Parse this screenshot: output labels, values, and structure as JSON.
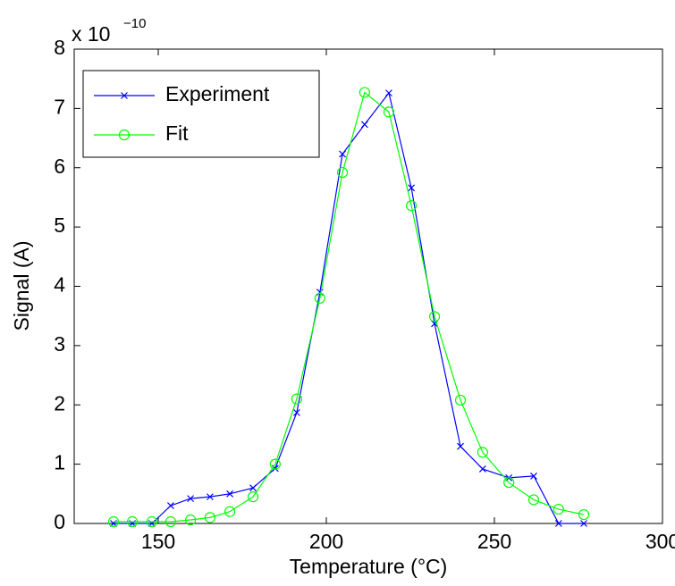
{
  "chart_data": {
    "type": "line",
    "xlabel": "Temperature (°C)",
    "ylabel": "Signal (A)",
    "y_multiplier_label": "x 10",
    "y_multiplier_exponent": "−10",
    "x": [
      136.7,
      142.3,
      148.1,
      153.7,
      159.6,
      165.4,
      171.3,
      178.2,
      184.8,
      191.2,
      198.1,
      204.8,
      211.4,
      218.6,
      225.3,
      232.2,
      239.9,
      246.5,
      254.3,
      261.7,
      269.1,
      276.6
    ],
    "series": [
      {
        "name": "Experiment",
        "color": "#0000ff",
        "marker": "x",
        "values": [
          0,
          0,
          0,
          0.3,
          0.42,
          0.45,
          0.5,
          0.6,
          0.93,
          1.87,
          3.9,
          6.23,
          6.73,
          7.26,
          5.66,
          3.37,
          1.3,
          0.92,
          0.77,
          0.8,
          0,
          0
        ]
      },
      {
        "name": "Fit",
        "color": "#00ff00",
        "marker": "o",
        "values": [
          0.03,
          0.03,
          0.03,
          0.03,
          0.06,
          0.1,
          0.2,
          0.45,
          1.0,
          2.1,
          3.8,
          5.92,
          7.27,
          6.94,
          5.36,
          3.49,
          2.08,
          1.2,
          0.69,
          0.4,
          0.24,
          0.15
        ]
      }
    ],
    "xlim": [
      125,
      300
    ],
    "ylim": [
      0,
      8
    ],
    "xticks": [
      150,
      200,
      250,
      300
    ],
    "yticks": [
      0,
      1,
      2,
      3,
      4,
      5,
      6,
      7,
      8
    ],
    "legend": "upper-left"
  }
}
